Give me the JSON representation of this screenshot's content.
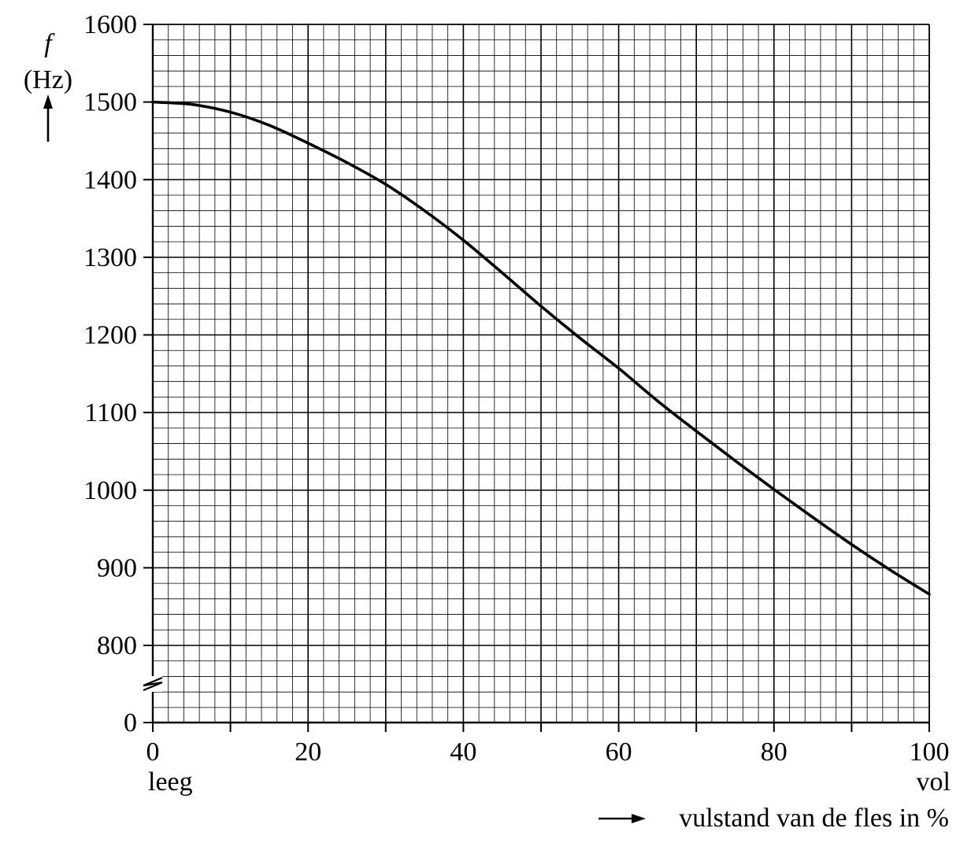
{
  "chart_data": {
    "type": "line",
    "y_axis": {
      "symbol": "f",
      "unit": "(Hz)",
      "range": [
        0,
        1600
      ],
      "axis_break_between": [
        0,
        800
      ],
      "tick_labels": [
        "1600",
        "1500",
        "1400",
        "1300",
        "1200",
        "1100",
        "1000",
        "900",
        "800",
        "0"
      ],
      "tick_values": [
        1600,
        1500,
        1400,
        1300,
        1200,
        1100,
        1000,
        900,
        800,
        0
      ],
      "minor_step": 20
    },
    "x_axis": {
      "label": "vulstand van de fles in %",
      "range": [
        0,
        100
      ],
      "tick_labels": [
        "0",
        "20",
        "40",
        "60",
        "80",
        "100"
      ],
      "tick_values": [
        0,
        20,
        40,
        60,
        80,
        100
      ],
      "start_label": "leeg",
      "end_label": "vol",
      "minor_step": 2
    },
    "grid": true,
    "series": [
      {
        "x": [
          0,
          5,
          10,
          15,
          20,
          25,
          30,
          35,
          40,
          45,
          50,
          55,
          60,
          65,
          70,
          75,
          80,
          85,
          90,
          95,
          100
        ],
        "y": [
          1500,
          1497,
          1487,
          1470,
          1447,
          1422,
          1394,
          1360,
          1322,
          1280,
          1237,
          1196,
          1157,
          1115,
          1076,
          1038,
          1001,
          965,
          930,
          897,
          866
        ]
      }
    ]
  }
}
